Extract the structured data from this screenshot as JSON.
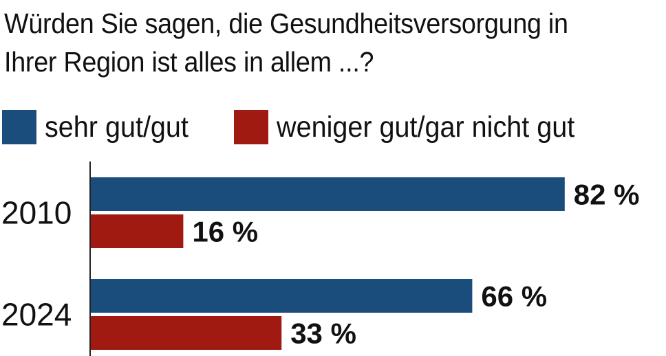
{
  "chart_data": {
    "type": "bar",
    "orientation": "horizontal",
    "title": "Würden Sie sagen, die Gesundheitsversorgung in Ihrer Region ist alles in allem ...?",
    "categories": [
      "2010",
      "2024"
    ],
    "series": [
      {
        "name": "sehr gut/gut",
        "color": "#1b4d7c",
        "values": [
          82,
          66
        ],
        "labels": [
          "82 %",
          "66 %"
        ]
      },
      {
        "name": "weniger gut/gar nicht gut",
        "color": "#a01a12",
        "values": [
          16,
          33
        ],
        "labels": [
          "16 %",
          "33 %"
        ]
      }
    ],
    "xlim": [
      0,
      100
    ],
    "grid": false,
    "legend": "top-left"
  }
}
